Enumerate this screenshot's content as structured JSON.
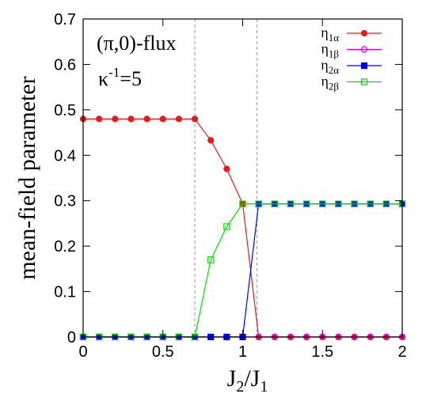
{
  "chart_data": {
    "type": "line",
    "xlabel": "J2/J1",
    "ylabel": "mean-field parameter",
    "xlim": [
      0,
      2
    ],
    "ylim": [
      0,
      0.7
    ],
    "xticks": [
      0,
      0.5,
      1,
      1.5,
      2
    ],
    "yticks": [
      0,
      0.1,
      0.2,
      0.3,
      0.4,
      0.5,
      0.6,
      0.7
    ],
    "xtick_labels": [
      "0",
      "0.5",
      "1",
      "1.5",
      "2"
    ],
    "ytick_labels": [
      "0",
      "0.1",
      "0.2",
      "0.3",
      "0.4",
      "0.5",
      "0.6",
      "0.7"
    ],
    "grid": false,
    "legend_position": "top-right",
    "vlines": [
      0.7,
      1.09
    ],
    "annotations": [
      "(π,0)-flux",
      "κ-1=5"
    ],
    "series": [
      {
        "name": "η1α",
        "color": "#e41a1c",
        "marker": "filled-circle",
        "x": [
          0,
          0.1,
          0.2,
          0.3,
          0.4,
          0.5,
          0.6,
          0.7,
          0.8,
          0.9,
          1.0,
          1.1,
          1.2,
          1.3,
          1.4,
          1.5,
          1.6,
          1.7,
          1.8,
          1.9,
          2.0
        ],
        "y": [
          0.48,
          0.48,
          0.48,
          0.48,
          0.48,
          0.48,
          0.48,
          0.48,
          0.433,
          0.37,
          0.293,
          0,
          0,
          0,
          0,
          0,
          0,
          0,
          0,
          0,
          0
        ]
      },
      {
        "name": "η1β",
        "color": "#e000e0",
        "marker": "open-circle",
        "x": [
          0,
          0.1,
          0.2,
          0.3,
          0.4,
          0.5,
          0.6,
          0.7,
          0.8,
          0.9,
          1.0,
          1.1,
          1.2,
          1.3,
          1.4,
          1.5,
          1.6,
          1.7,
          1.8,
          1.9,
          2.0
        ],
        "y": [
          0,
          0,
          0,
          0,
          0,
          0,
          0,
          0,
          0,
          0,
          0,
          0,
          0,
          0,
          0,
          0,
          0,
          0,
          0,
          0,
          0
        ]
      },
      {
        "name": "η2α",
        "color": "#0000ff",
        "marker": "filled-square",
        "x": [
          0,
          0.1,
          0.2,
          0.3,
          0.4,
          0.5,
          0.6,
          0.7,
          0.8,
          0.9,
          1.0,
          1.1,
          1.2,
          1.3,
          1.4,
          1.5,
          1.6,
          1.7,
          1.8,
          1.9,
          2.0
        ],
        "y": [
          0,
          0,
          0,
          0,
          0,
          0,
          0,
          0,
          0,
          0,
          0,
          0.293,
          0.293,
          0.293,
          0.293,
          0.293,
          0.293,
          0.293,
          0.293,
          0.293,
          0.293
        ]
      },
      {
        "name": "η2β",
        "color": "#00dd00",
        "marker": "open-square",
        "x": [
          0,
          0.1,
          0.2,
          0.3,
          0.4,
          0.5,
          0.6,
          0.7,
          0.8,
          0.9,
          1.0,
          1.1,
          1.2,
          1.3,
          1.4,
          1.5,
          1.6,
          1.7,
          1.8,
          1.9,
          2.0
        ],
        "y": [
          0,
          0,
          0,
          0,
          0,
          0,
          0,
          0,
          0.17,
          0.243,
          0.293,
          0.293,
          0.293,
          0.293,
          0.293,
          0.293,
          0.293,
          0.293,
          0.293,
          0.293,
          0.293
        ]
      }
    ]
  }
}
